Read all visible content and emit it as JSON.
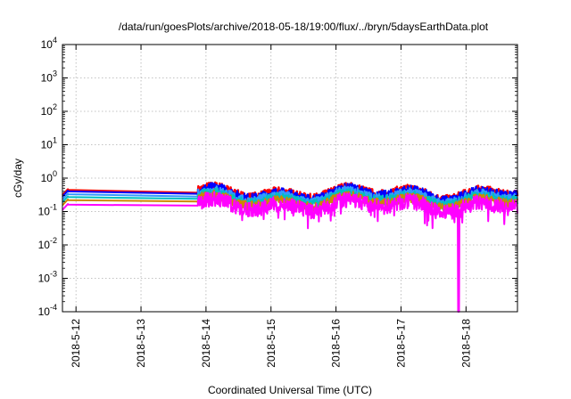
{
  "chart_data": {
    "type": "line",
    "title": "/data/run/goesPlots/archive/2018-05-18/19:00/flux/../bryn/5daysEarthData.plot",
    "xlabel": "Coordinated Universal Time (UTC)",
    "ylabel": "cGy/day",
    "yscale": "log",
    "ylim_exponents": [
      -4,
      4
    ],
    "y_ticks": [
      {
        "base": "10",
        "exp": "-4"
      },
      {
        "base": "10",
        "exp": "-3"
      },
      {
        "base": "10",
        "exp": "-2"
      },
      {
        "base": "10",
        "exp": "-1"
      },
      {
        "base": "10",
        "exp": "0"
      },
      {
        "base": "10",
        "exp": "1"
      },
      {
        "base": "10",
        "exp": "2"
      },
      {
        "base": "10",
        "exp": "3"
      },
      {
        "base": "10",
        "exp": "4"
      }
    ],
    "x_ticks": [
      "2018-5-12",
      "2018-5-13",
      "2018-5-14",
      "2018-5-15",
      "2018-5-16",
      "2018-5-17",
      "2018-5-18"
    ],
    "xlim": [
      "2018-05-11T19:00",
      "2018-05-18T19:00"
    ],
    "grid": true,
    "gap": {
      "start": "2018-05-11T21:00",
      "end": "2018-05-13T21:00"
    },
    "series": [
      {
        "color": "#ff0000",
        "level": 0.44,
        "end_level": 0.36
      },
      {
        "color": "#0000ff",
        "level": 0.4,
        "end_level": 0.34
      },
      {
        "color": "#3399ff",
        "level": 0.33,
        "end_level": 0.28
      },
      {
        "color": "#00bfbf",
        "level": 0.27,
        "end_level": 0.24
      },
      {
        "color": "#cc8800",
        "level": 0.22,
        "end_level": 0.2
      },
      {
        "color": "#ff00ff",
        "level": 0.16,
        "end_level": 0.15
      }
    ],
    "dropout": {
      "time": "2018-05-17T21:15",
      "min": 0.0001
    }
  }
}
